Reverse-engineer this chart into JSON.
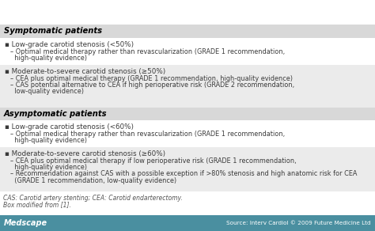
{
  "bg_white": "#ffffff",
  "bg_gray_header": "#d8d8d8",
  "bg_gray_row": "#ebebeb",
  "footer_color": "#4a8fa0",
  "text_color": "#3a3a3a",
  "footnote_color": "#555555",
  "footer_text_color": "#ffffff",
  "symptomatic_header": "Symptomatic patients",
  "asymptomatic_header": "Asymptomatic patients",
  "content": [
    {
      "bullet": "Low-grade carotid stenosis (<50%)",
      "sub": [
        "– Optimal medical therapy rather than revascularization (GRADE 1 recommendation,",
        "  high-quality evidence)"
      ]
    },
    {
      "bullet": "Moderate-to-severe carotid stenosis (≥50%)",
      "sub": [
        "– CEA plus optimal medical therapy (GRADE 1 recommendation, high-quality evidence)",
        "– CAS potential alternative to CEA if high perioperative risk (GRADE 2 recommendation,",
        "  low-quality evidence)"
      ]
    },
    {
      "bullet": "Low-grade carotid stenosis (<60%)",
      "sub": [
        "– Optimal medical therapy rather than revascularization (GRADE 1 recommendation,",
        "  high-quality evidence)"
      ]
    },
    {
      "bullet": "Moderate-to-severe carotid stenosis (≥60%)",
      "sub": [
        "– CEA plus optimal medical therapy if low perioperative risk (GRADE 1 recommendation,",
        "  high-quality evidence)",
        "– Recommendation against CAS with a possible exception if >80% stenosis and high anatomic risk for CEA",
        "  (GRADE 1 recommendation, low-quality evidence)"
      ]
    }
  ],
  "footnote1": "CAS: Carotid artery stenting; CEA: Carotid endarterectomy.",
  "footnote2": "Box modified from [1].",
  "footer_left": "Medscape",
  "footer_right": "Source: Interv Cardiol © 2009 Future Medicine Ltd"
}
